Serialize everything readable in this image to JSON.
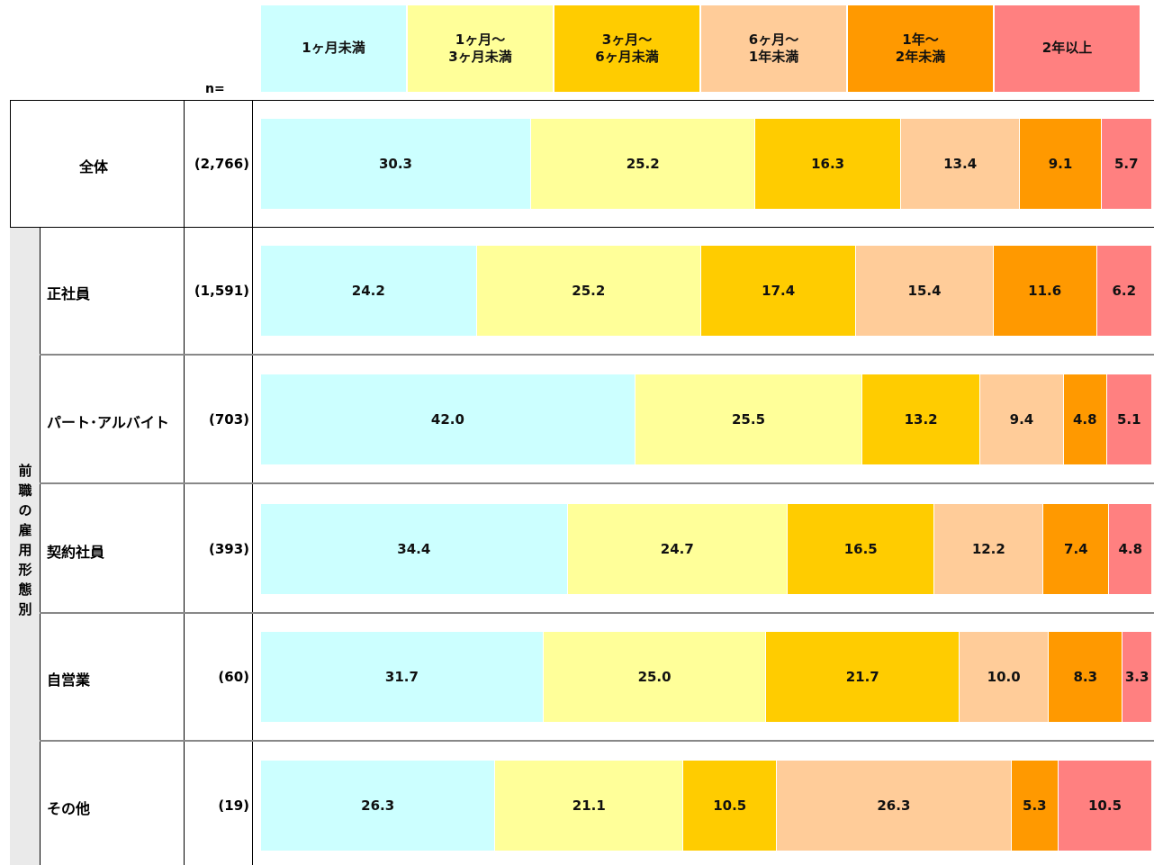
{
  "chart_data": {
    "type": "bar",
    "orientation": "horizontal",
    "stacked": true,
    "legend": [
      "1ヶ月未満",
      "1ヶ月～\n3ヶ月未満",
      "3ヶ月～\n6ヶ月未満",
      "6ヶ月～\n1年未満",
      "1年～\n2年未満",
      "2年以上"
    ],
    "colors": [
      "#ccffff",
      "#ffff99",
      "#ffcc00",
      "#ffcc99",
      "#ff9900",
      "#ff8080"
    ],
    "n_header": "n=",
    "group_label": "前\n職\nの\n雇\n用\n形\n態\n別",
    "rows": [
      {
        "label": "全体",
        "n": "(2,766)",
        "values": [
          30.3,
          25.2,
          16.3,
          13.4,
          9.1,
          5.7
        ]
      },
      {
        "label": "正社員",
        "n": "(1,591)",
        "values": [
          24.2,
          25.2,
          17.4,
          15.4,
          11.6,
          6.2
        ]
      },
      {
        "label": "パート･アルバイト",
        "n": "(703)",
        "values": [
          42.0,
          25.5,
          13.2,
          9.4,
          4.8,
          5.1
        ]
      },
      {
        "label": "契約社員",
        "n": "(393)",
        "values": [
          34.4,
          24.7,
          16.5,
          12.2,
          7.4,
          4.8
        ]
      },
      {
        "label": "自営業",
        "n": "(60)",
        "values": [
          31.7,
          25.0,
          21.7,
          10.0,
          8.3,
          3.3
        ]
      },
      {
        "label": "その他",
        "n": "(19)",
        "values": [
          26.3,
          21.1,
          10.5,
          26.3,
          5.3,
          10.5
        ]
      }
    ],
    "xlim": [
      0,
      100
    ]
  }
}
